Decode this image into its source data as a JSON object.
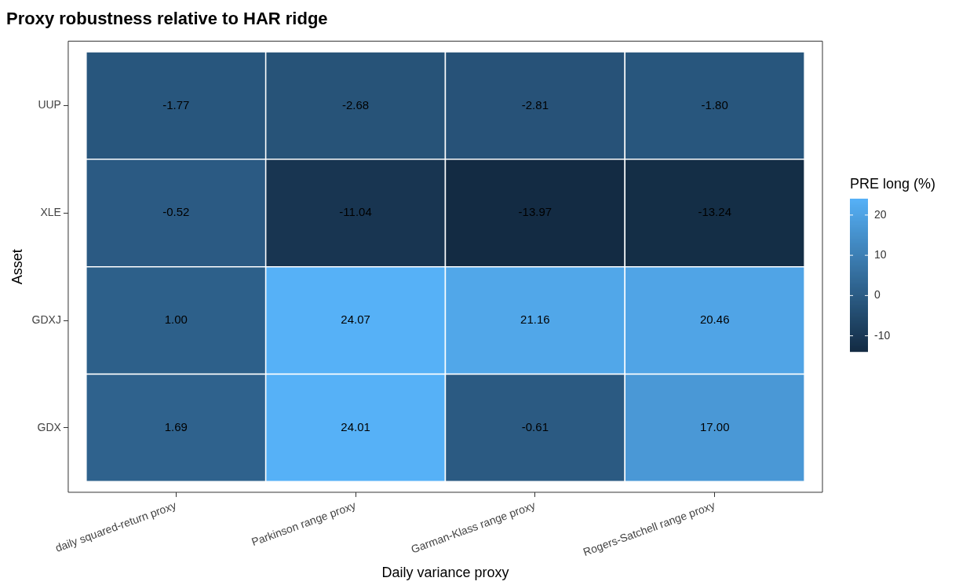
{
  "chart_data": {
    "type": "heatmap",
    "title": "Proxy robustness relative to HAR ridge",
    "xlabel": "Daily variance proxy",
    "ylabel": "Asset",
    "clabel": "PRE long (%)",
    "categories": [
      "daily squared-return proxy",
      "Parkinson range proxy",
      "Garman-Klass range proxy",
      "Rogers-Satchell range proxy"
    ],
    "y_categories": [
      "UUP",
      "XLE",
      "GDXJ",
      "GDX"
    ],
    "cells": [
      [
        -1.77,
        -2.68,
        -2.81,
        -1.8
      ],
      [
        -0.52,
        -11.04,
        -13.97,
        -13.24
      ],
      [
        1.0,
        24.07,
        21.16,
        20.46
      ],
      [
        1.69,
        24.01,
        -0.61,
        17.0
      ]
    ],
    "cell_labels": [
      [
        "-1.77",
        "-2.68",
        "-2.81",
        "-1.80"
      ],
      [
        "-0.52",
        "-11.04",
        "-13.97",
        "-13.24"
      ],
      [
        "1.00",
        "24.07",
        "21.16",
        "20.46"
      ],
      [
        "1.69",
        "24.01",
        "-0.61",
        "17.00"
      ]
    ],
    "colors": [
      "#132b43",
      "#56b1f7"
    ],
    "clim": [
      -13.97,
      24.07
    ],
    "cticks": [
      -10,
      0,
      10,
      20
    ]
  }
}
